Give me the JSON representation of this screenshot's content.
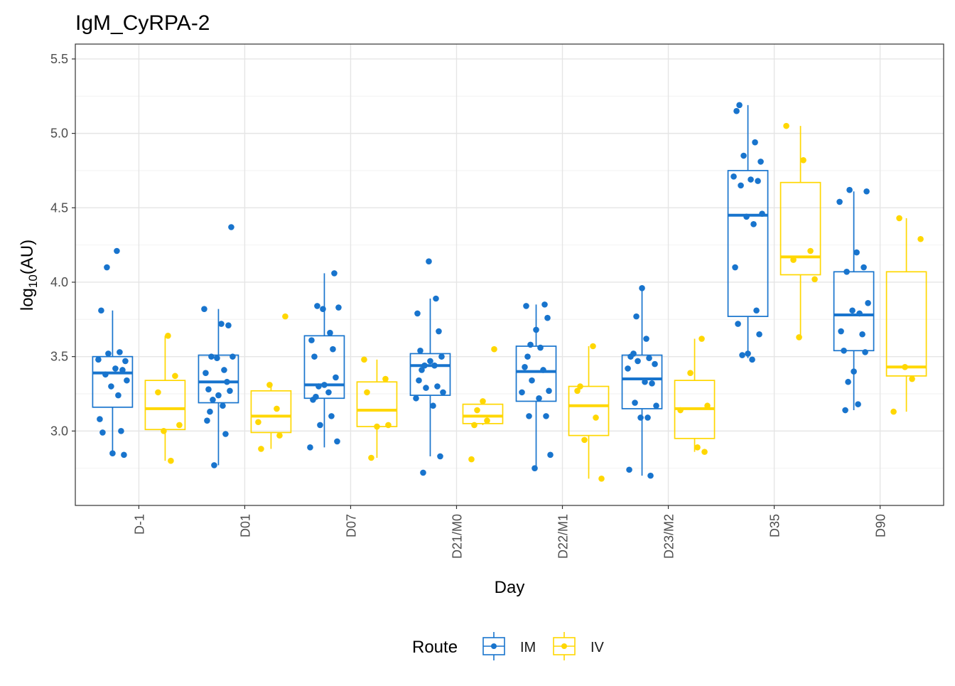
{
  "chart_data": {
    "type": "boxplot",
    "title": "IgM_CyRPA-2",
    "xlabel": "Day",
    "ylabel_base": "log",
    "ylabel_sub": "10",
    "ylabel_rest": "(AU)",
    "ylim": [
      2.5,
      5.6
    ],
    "yticks": [
      3.0,
      3.5,
      4.0,
      4.5,
      5.0,
      5.5
    ],
    "ytick_labels": [
      "3.0",
      "3.5",
      "4.0",
      "4.5",
      "5.0",
      "5.5"
    ],
    "categories": [
      "D-1",
      "D01",
      "D07",
      "D21/M0",
      "D22/M1",
      "D23/M2",
      "D35",
      "D90"
    ],
    "grid": true,
    "legend": {
      "position": "bottom",
      "title": "Route",
      "entries": [
        "IM",
        "IV"
      ]
    },
    "colors": {
      "IM": "#1874CD",
      "IV": "#FFD700"
    },
    "series": [
      {
        "name": "IM",
        "boxes": [
          {
            "q1": 3.16,
            "median": 3.39,
            "q3": 3.5,
            "whislo": 2.85,
            "whishi": 3.81
          },
          {
            "q1": 3.19,
            "median": 3.33,
            "q3": 3.51,
            "whislo": 2.77,
            "whishi": 3.82
          },
          {
            "q1": 3.22,
            "median": 3.31,
            "q3": 3.64,
            "whislo": 2.89,
            "whishi": 4.06
          },
          {
            "q1": 3.24,
            "median": 3.44,
            "q3": 3.52,
            "whislo": 2.83,
            "whishi": 3.89
          },
          {
            "q1": 3.2,
            "median": 3.4,
            "q3": 3.57,
            "whislo": 2.75,
            "whishi": 3.85
          },
          {
            "q1": 3.15,
            "median": 3.35,
            "q3": 3.51,
            "whislo": 2.7,
            "whishi": 3.96
          },
          {
            "q1": 3.77,
            "median": 4.45,
            "q3": 4.75,
            "whislo": 3.49,
            "whishi": 5.19
          },
          {
            "q1": 3.54,
            "median": 3.78,
            "q3": 4.07,
            "whislo": 3.14,
            "whishi": 4.61
          }
        ],
        "points": [
          [
            3.81,
            3.53,
            3.52,
            3.47,
            3.48,
            3.42,
            3.41,
            3.38,
            3.34,
            3.3,
            3.24,
            3.08,
            3.0,
            2.99,
            2.84,
            2.85,
            4.1,
            4.21
          ],
          [
            4.37,
            3.82,
            3.72,
            3.71,
            3.5,
            3.5,
            3.49,
            3.41,
            3.39,
            3.33,
            3.28,
            3.27,
            3.24,
            3.21,
            3.17,
            3.13,
            3.07,
            2.98,
            2.77
          ],
          [
            4.06,
            3.84,
            3.83,
            3.82,
            3.66,
            3.61,
            3.55,
            3.5,
            3.36,
            3.31,
            3.3,
            3.26,
            3.23,
            3.21,
            3.1,
            3.04,
            2.93,
            2.89
          ],
          [
            4.14,
            3.89,
            3.79,
            3.67,
            3.54,
            3.5,
            3.47,
            3.44,
            3.44,
            3.41,
            3.34,
            3.3,
            3.29,
            3.26,
            3.22,
            3.17,
            2.83,
            2.72
          ],
          [
            3.85,
            3.84,
            3.76,
            3.68,
            3.58,
            3.56,
            3.5,
            3.43,
            3.41,
            3.34,
            3.27,
            3.26,
            3.22,
            3.1,
            3.1,
            2.84,
            2.75
          ],
          [
            3.96,
            3.77,
            3.62,
            3.52,
            3.5,
            3.49,
            3.47,
            3.45,
            3.42,
            3.33,
            3.32,
            3.19,
            3.17,
            3.09,
            3.09,
            2.74,
            2.7
          ],
          [
            5.19,
            5.15,
            4.94,
            4.85,
            4.81,
            4.71,
            4.69,
            4.68,
            4.65,
            4.46,
            4.44,
            4.39,
            4.1,
            3.81,
            3.72,
            3.65,
            3.52,
            3.51,
            3.48
          ],
          [
            4.62,
            4.61,
            4.54,
            4.2,
            4.1,
            4.07,
            3.86,
            3.81,
            3.79,
            3.67,
            3.65,
            3.54,
            3.53,
            3.4,
            3.33,
            3.18,
            3.14
          ]
        ]
      },
      {
        "name": "IV",
        "boxes": [
          {
            "q1": 3.01,
            "median": 3.15,
            "q3": 3.34,
            "whislo": 2.8,
            "whishi": 3.64
          },
          {
            "q1": 2.99,
            "median": 3.1,
            "q3": 3.27,
            "whislo": 2.88,
            "whishi": 3.31
          },
          {
            "q1": 3.03,
            "median": 3.14,
            "q3": 3.33,
            "whislo": 2.82,
            "whishi": 3.48
          },
          {
            "q1": 3.05,
            "median": 3.1,
            "q3": 3.18,
            "whislo": 3.04,
            "whishi": 3.19
          },
          {
            "q1": 2.97,
            "median": 3.17,
            "q3": 3.3,
            "whislo": 2.68,
            "whishi": 3.57
          },
          {
            "q1": 2.95,
            "median": 3.15,
            "q3": 3.34,
            "whislo": 2.86,
            "whishi": 3.62
          },
          {
            "q1": 4.05,
            "median": 4.17,
            "q3": 4.67,
            "whislo": 3.63,
            "whishi": 5.05
          },
          {
            "q1": 3.37,
            "median": 3.43,
            "q3": 4.07,
            "whislo": 3.13,
            "whishi": 4.43
          }
        ],
        "points": [
          [
            3.64,
            3.37,
            3.26,
            3.04,
            3.0,
            2.8
          ],
          [
            3.77,
            3.31,
            3.15,
            3.06,
            2.97,
            2.88
          ],
          [
            3.48,
            3.35,
            3.26,
            3.04,
            3.03,
            2.82
          ],
          [
            3.55,
            3.2,
            3.14,
            3.07,
            3.04,
            2.81
          ],
          [
            3.57,
            3.3,
            3.27,
            3.09,
            2.94,
            2.68
          ],
          [
            3.62,
            3.39,
            3.17,
            3.14,
            2.89,
            2.86
          ],
          [
            5.05,
            4.82,
            4.21,
            4.15,
            4.02,
            3.63
          ],
          [
            4.43,
            4.29,
            3.43,
            3.35,
            3.13
          ]
        ]
      }
    ]
  }
}
